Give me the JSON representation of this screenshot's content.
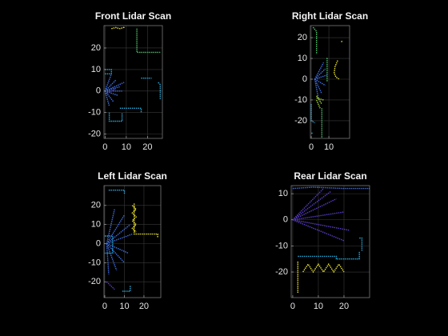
{
  "chart_data": [
    {
      "type": "line",
      "title": "Front Lidar Scan",
      "xlim": [
        -0.5,
        27
      ],
      "ylim": [
        -22,
        30.4
      ],
      "xticks": [
        0,
        10,
        20
      ],
      "yticks": [
        -20,
        -10,
        0,
        10,
        20
      ],
      "grid": true,
      "series": [
        {
          "color": "#e8e030",
          "x": [
            3,
            5,
            7,
            9,
            9
          ],
          "y": [
            29,
            29.5,
            29,
            29.6,
            30
          ]
        },
        {
          "color": "#4cbf6a",
          "x": [
            15,
            15,
            26
          ],
          "y": [
            29,
            18,
            18
          ]
        },
        {
          "color": "#3c6ee8",
          "x": [
            0,
            5,
            null,
            0,
            7,
            null,
            0,
            6,
            null,
            0,
            4,
            null,
            0,
            8,
            null,
            0,
            3,
            null,
            0,
            2,
            null,
            0,
            9
          ],
          "y": [
            0,
            5,
            null,
            0,
            2,
            null,
            0,
            -2,
            null,
            0,
            -5,
            null,
            0,
            0,
            null,
            0,
            8,
            null,
            0,
            -7,
            null,
            0,
            4
          ]
        },
        {
          "color": "#2aa8d8",
          "x": [
            0,
            3,
            3,
            0,
            null,
            2,
            2,
            8,
            8,
            null,
            7,
            17,
            17,
            null,
            17,
            22,
            null,
            25,
            26,
            26
          ],
          "y": [
            10,
            10,
            8,
            8,
            null,
            -10,
            -14,
            -14,
            -10,
            null,
            -8,
            -8,
            -10,
            null,
            6,
            6,
            null,
            4,
            3,
            -4
          ]
        },
        {
          "color": "#5a3cc8",
          "x": [
            1,
            3,
            5
          ],
          "y": [
            -1,
            0,
            1
          ]
        }
      ]
    },
    {
      "type": "line",
      "title": "Right Lidar Scan",
      "xlim": [
        -0.5,
        21.8
      ],
      "ylim": [
        -28.5,
        25.8
      ],
      "xticks": [
        0,
        10
      ],
      "yticks": [
        -20,
        -10,
        0,
        10,
        20
      ],
      "grid": true,
      "series": [
        {
          "color": "#e8e030",
          "x": [
            15,
            13.5,
            13,
            14,
            16,
            null,
            17,
            18
          ],
          "y": [
            9,
            6,
            3,
            1,
            0,
            null,
            18,
            18.5
          ]
        },
        {
          "color": "#4cbf6a",
          "x": [
            1,
            3,
            3,
            null,
            9,
            9,
            9.5,
            null,
            6,
            6
          ],
          "y": [
            25,
            23,
            12,
            null,
            -1,
            10,
            10,
            null,
            -14,
            -28
          ]
        },
        {
          "color": "#3c6ee8",
          "x": [
            2,
            8,
            null,
            2,
            9,
            null,
            2,
            8,
            null,
            2,
            6,
            null,
            2,
            4,
            null,
            2,
            7
          ],
          "y": [
            0,
            5,
            null,
            0,
            2,
            null,
            0,
            -3,
            null,
            0,
            -7,
            null,
            0,
            -9,
            null,
            0,
            8
          ]
        },
        {
          "color": "#a8d840",
          "x": [
            3,
            6,
            null,
            3,
            7,
            null,
            3,
            5
          ],
          "y": [
            -8,
            -12,
            null,
            -9,
            -10,
            null,
            -10,
            -14
          ]
        },
        {
          "color": "#2aa8d8",
          "x": [
            0,
            0,
            2,
            null,
            0,
            1
          ],
          "y": [
            -12,
            -20,
            -21,
            null,
            -26,
            -26
          ]
        }
      ]
    },
    {
      "type": "line",
      "title": "Left Lidar Scan",
      "xlim": [
        -0.4,
        28.6
      ],
      "ylim": [
        -28.3,
        30.4
      ],
      "xticks": [
        0,
        10,
        20
      ],
      "yticks": [
        -20,
        -10,
        0,
        10,
        20
      ],
      "grid": true,
      "series": [
        {
          "color": "#e8e030",
          "x": [
            15,
            15,
            27,
            27,
            null,
            14,
            16,
            14,
            16,
            14,
            16,
            14,
            16
          ],
          "y": [
            21,
            5,
            5,
            3,
            null,
            20,
            18,
            16,
            14,
            12,
            10,
            8,
            6
          ]
        },
        {
          "color": "#2aa8d8",
          "x": [
            2,
            10,
            10,
            null,
            0,
            4,
            4,
            0,
            null,
            9,
            13,
            13
          ],
          "y": [
            28,
            28,
            26,
            null,
            4,
            4,
            -5,
            -5,
            null,
            -25,
            -25,
            -22
          ]
        },
        {
          "color": "#3c6ee8",
          "x": [
            1,
            14,
            null,
            1,
            13,
            null,
            1,
            10,
            null,
            1,
            5,
            null,
            1,
            12,
            null,
            1,
            10,
            null,
            1,
            6,
            null,
            1,
            2
          ],
          "y": [
            0,
            5,
            null,
            0,
            10,
            null,
            0,
            15,
            null,
            0,
            18,
            null,
            0,
            -5,
            null,
            0,
            -10,
            null,
            0,
            -14,
            null,
            0,
            -16
          ]
        },
        {
          "color": "#5a3cc8",
          "x": [
            1,
            3,
            5
          ],
          "y": [
            -20,
            -22,
            -24
          ]
        }
      ]
    },
    {
      "type": "line",
      "title": "Rear Lidar Scan",
      "xlim": [
        -0.6,
        30
      ],
      "ylim": [
        -29.8,
        13.1
      ],
      "xticks": [
        0,
        10,
        20
      ],
      "yticks": [
        -20,
        -10,
        0,
        10
      ],
      "grid": true,
      "series": [
        {
          "color": "#5a3cc8",
          "x": [
            0,
            12,
            null,
            0,
            17,
            null,
            0,
            20,
            null,
            0,
            22,
            null,
            0,
            20,
            null,
            0,
            15
          ],
          "y": [
            0,
            12,
            null,
            0,
            8,
            null,
            0,
            3,
            null,
            0,
            -4,
            null,
            0,
            -8,
            null,
            0,
            11
          ]
        },
        {
          "color": "#e8e030",
          "x": [
            4,
            6,
            8,
            10,
            12,
            14,
            16,
            18,
            20,
            null,
            2,
            2
          ],
          "y": [
            -20,
            -17,
            -20,
            -17,
            -20,
            -17,
            -20,
            -17,
            -20,
            null,
            -16,
            -28
          ]
        },
        {
          "color": "#2aa8d8",
          "x": [
            2,
            17,
            17,
            26,
            26,
            null,
            26,
            27,
            27
          ],
          "y": [
            -14,
            -14,
            -15,
            -15,
            -12,
            null,
            -7,
            -7,
            -12
          ]
        },
        {
          "color": "#3c6ee8",
          "x": [
            0,
            8,
            20,
            30
          ],
          "y": [
            12,
            12.5,
            12,
            12
          ]
        }
      ]
    }
  ]
}
